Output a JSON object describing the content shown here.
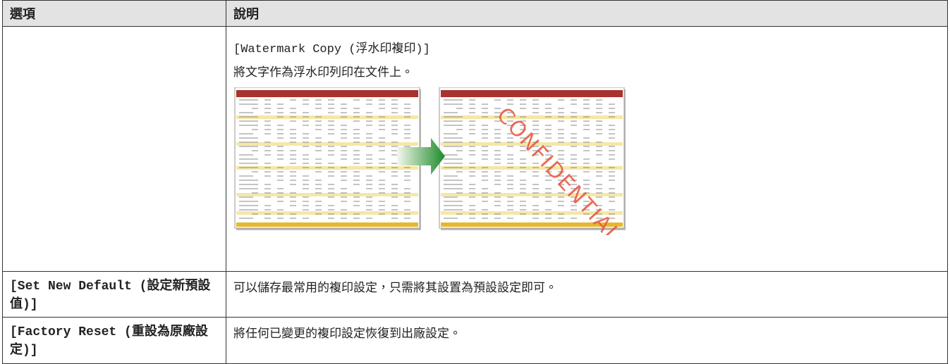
{
  "table": {
    "header": [
      "選項",
      "說明"
    ],
    "rows": [
      {
        "description": {
          "code": "[Watermark Copy (浮水印複印)]",
          "text": "將文字作為浮水印列印在文件上。",
          "figure_label": "CONFIDENTIAL"
        }
      },
      {
        "option": "[Set New Default (設定新預設值)]",
        "description": {
          "text": "可以儲存最常用的複印設定，只需將其設置為預設設定即可。"
        }
      },
      {
        "option": "[Factory Reset (重設為原廠設定)]",
        "description": {
          "text": "將任何已變更的複印設定恢復到出廠設定。"
        }
      }
    ]
  }
}
